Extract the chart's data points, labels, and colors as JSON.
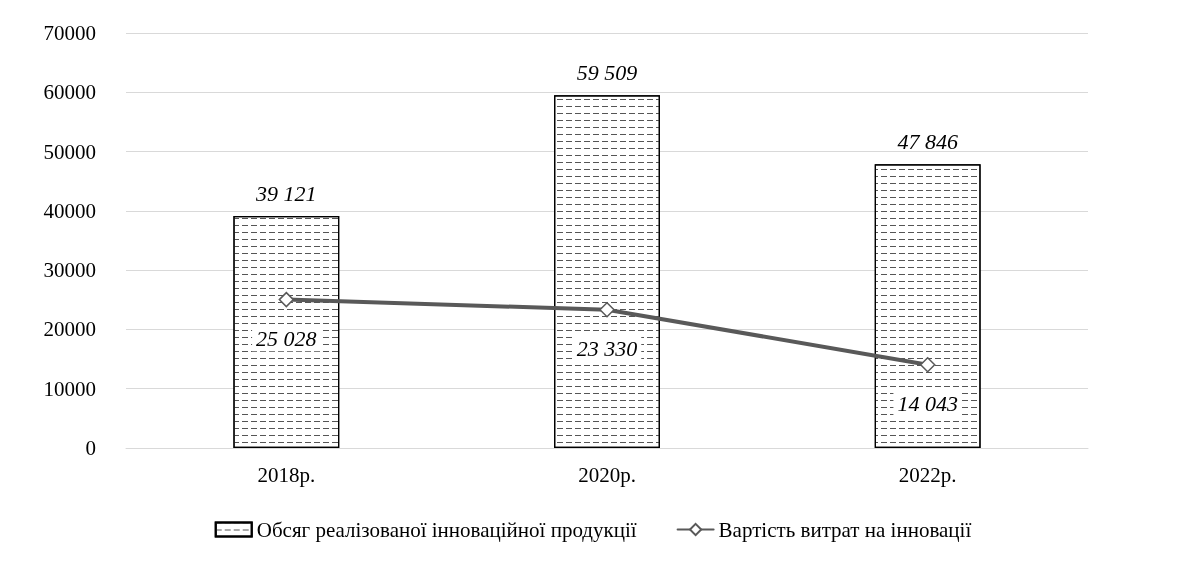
{
  "chart_data": {
    "type": "bar",
    "categories": [
      "2018р.",
      "2020р.",
      "2022р."
    ],
    "series": [
      {
        "name": "Обсяг реалізованої інноваційної продукції",
        "color": "#ffffff",
        "values": [
          39121,
          59509,
          47846
        ],
        "value_labels": [
          "39 121",
          "59 509",
          "47 846"
        ]
      },
      {
        "name": "Вартість витрат на інновації",
        "type": "line",
        "color": "#595959",
        "values": [
          25028,
          23330,
          14043
        ],
        "value_labels": [
          "25 028",
          "23 330",
          "14 043"
        ]
      }
    ],
    "ylim": [
      0,
      70000
    ],
    "yticks": [
      0,
      10000,
      20000,
      30000,
      40000,
      50000,
      60000,
      70000
    ],
    "grid": "y",
    "legend": "bottom",
    "marker": "diamond",
    "line_style": "solid"
  }
}
